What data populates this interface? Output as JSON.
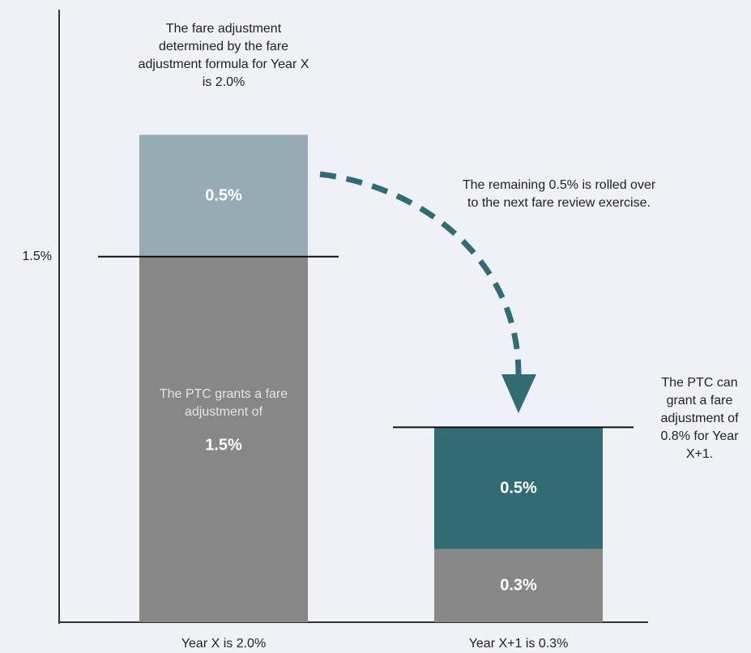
{
  "chart_data": {
    "type": "stacked_bar",
    "categories": [
      "Year X is 2.0%",
      "Year X+1 is 0.3%"
    ],
    "series": [
      {
        "color": [
          "#878787",
          "#878787"
        ],
        "values": [
          1.5,
          0.3
        ],
        "value_labels": [
          "1.5%",
          "0.3%"
        ]
      },
      {
        "color": [
          "#97abb5",
          "#336b75"
        ],
        "values": [
          0.5,
          0.5
        ],
        "value_labels": [
          "0.5%",
          "0.5%"
        ]
      }
    ],
    "thresholds": [
      1.5,
      0.8
    ],
    "ylim": [
      0,
      2.5
    ],
    "yticks": [
      {
        "value": 1.5,
        "label": "1.5%"
      }
    ],
    "annotations": [
      "The fare adjustment determined by the fare adjustment formula for Year X is 2.0%",
      "The remaining 0.5% is rolled over to the next fare review exercise.",
      "The PTC can grant a fare adjustment of 0.8% for Year X+1.",
      "The PTC grants a fare adjustment of"
    ]
  }
}
